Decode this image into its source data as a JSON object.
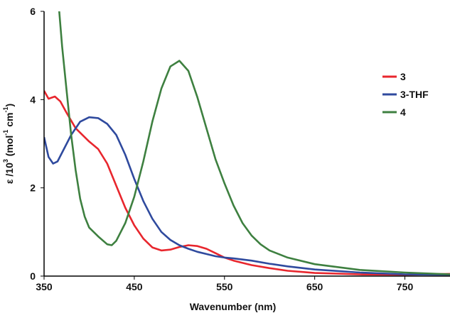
{
  "chart_data": {
    "type": "line",
    "title": "",
    "xlabel": "Wavenumber  (nm)",
    "ylabel_parts": [
      "ε /10",
      "3",
      " (mol",
      "-1",
      " cm",
      "-1",
      ")"
    ],
    "xlim": [
      350,
      800
    ],
    "ylim": [
      0,
      6
    ],
    "xticks": [
      350,
      450,
      550,
      650,
      750
    ],
    "yticks": [
      0,
      2,
      4,
      6
    ],
    "grid": false,
    "legend_position": "right",
    "series": [
      {
        "name": "3",
        "color": "#e8262d",
        "points": [
          [
            350,
            4.2
          ],
          [
            355,
            4.02
          ],
          [
            362,
            4.07
          ],
          [
            368,
            3.96
          ],
          [
            375,
            3.7
          ],
          [
            385,
            3.35
          ],
          [
            400,
            3.05
          ],
          [
            410,
            2.88
          ],
          [
            420,
            2.55
          ],
          [
            430,
            2.05
          ],
          [
            440,
            1.55
          ],
          [
            450,
            1.15
          ],
          [
            460,
            0.85
          ],
          [
            470,
            0.65
          ],
          [
            480,
            0.58
          ],
          [
            490,
            0.6
          ],
          [
            500,
            0.66
          ],
          [
            510,
            0.7
          ],
          [
            520,
            0.68
          ],
          [
            530,
            0.62
          ],
          [
            540,
            0.52
          ],
          [
            550,
            0.42
          ],
          [
            560,
            0.35
          ],
          [
            580,
            0.25
          ],
          [
            600,
            0.18
          ],
          [
            620,
            0.12
          ],
          [
            650,
            0.07
          ],
          [
            700,
            0.04
          ],
          [
            750,
            0.03
          ],
          [
            800,
            0.05
          ]
        ]
      },
      {
        "name": "3-THF",
        "color": "#2f4a9e",
        "points": [
          [
            350,
            3.15
          ],
          [
            355,
            2.7
          ],
          [
            360,
            2.55
          ],
          [
            365,
            2.6
          ],
          [
            370,
            2.8
          ],
          [
            380,
            3.2
          ],
          [
            390,
            3.5
          ],
          [
            400,
            3.6
          ],
          [
            410,
            3.58
          ],
          [
            420,
            3.45
          ],
          [
            430,
            3.2
          ],
          [
            440,
            2.75
          ],
          [
            450,
            2.2
          ],
          [
            460,
            1.7
          ],
          [
            470,
            1.3
          ],
          [
            480,
            1.0
          ],
          [
            490,
            0.82
          ],
          [
            500,
            0.7
          ],
          [
            510,
            0.62
          ],
          [
            520,
            0.55
          ],
          [
            530,
            0.5
          ],
          [
            540,
            0.45
          ],
          [
            550,
            0.42
          ],
          [
            560,
            0.4
          ],
          [
            580,
            0.35
          ],
          [
            600,
            0.28
          ],
          [
            620,
            0.22
          ],
          [
            650,
            0.15
          ],
          [
            700,
            0.08
          ],
          [
            750,
            0.04
          ],
          [
            800,
            0.03
          ]
        ]
      },
      {
        "name": "4",
        "color": "#3e8040",
        "points": [
          [
            366,
            6.2
          ],
          [
            370,
            5.2
          ],
          [
            375,
            4.2
          ],
          [
            380,
            3.2
          ],
          [
            385,
            2.4
          ],
          [
            390,
            1.75
          ],
          [
            395,
            1.35
          ],
          [
            400,
            1.1
          ],
          [
            410,
            0.9
          ],
          [
            420,
            0.72
          ],
          [
            425,
            0.7
          ],
          [
            430,
            0.8
          ],
          [
            440,
            1.2
          ],
          [
            450,
            1.8
          ],
          [
            460,
            2.6
          ],
          [
            470,
            3.5
          ],
          [
            480,
            4.25
          ],
          [
            490,
            4.75
          ],
          [
            500,
            4.88
          ],
          [
            510,
            4.65
          ],
          [
            520,
            4.05
          ],
          [
            530,
            3.35
          ],
          [
            540,
            2.65
          ],
          [
            550,
            2.1
          ],
          [
            560,
            1.6
          ],
          [
            570,
            1.2
          ],
          [
            580,
            0.92
          ],
          [
            590,
            0.72
          ],
          [
            600,
            0.58
          ],
          [
            620,
            0.42
          ],
          [
            650,
            0.27
          ],
          [
            700,
            0.14
          ],
          [
            750,
            0.08
          ],
          [
            800,
            0.04
          ]
        ]
      }
    ]
  }
}
